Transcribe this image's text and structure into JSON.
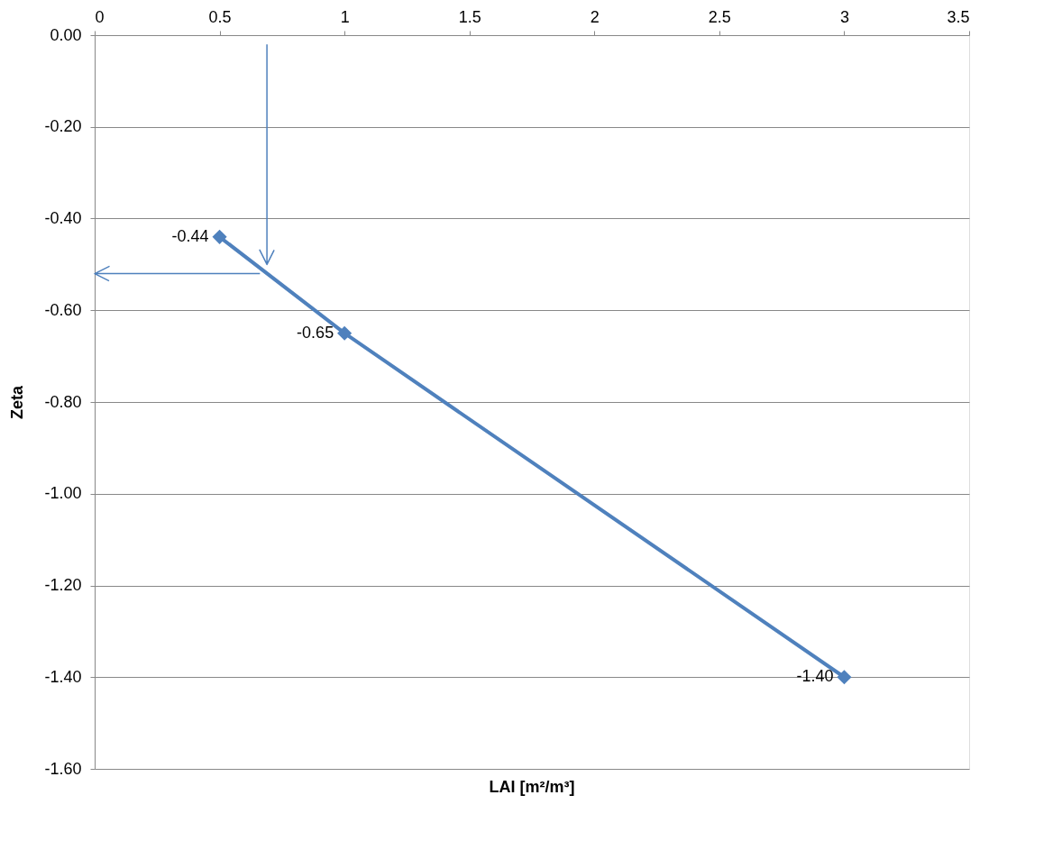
{
  "chart_data": {
    "type": "line",
    "xlabel": "LAI [m²/m³]",
    "ylabel": "Zeta",
    "xlim": [
      0,
      3.5
    ],
    "xticks": [
      0,
      0.5,
      1,
      1.5,
      2,
      2.5,
      3,
      3.5
    ],
    "ylim": [
      -1.6,
      0
    ],
    "yticks": [
      {
        "value": 0,
        "label": "0.00"
      },
      {
        "value": -0.2,
        "label": "-0.20"
      },
      {
        "value": -0.4,
        "label": "-0.40"
      },
      {
        "value": -0.6,
        "label": "-0.60"
      },
      {
        "value": -0.8,
        "label": "-0.80"
      },
      {
        "value": -1.0,
        "label": "-1.00"
      },
      {
        "value": -1.2,
        "label": "-1.20"
      },
      {
        "value": -1.4,
        "label": "-1.40"
      },
      {
        "value": -1.6,
        "label": "-1.60"
      }
    ],
    "grid": "y",
    "marker": "diamond",
    "line_style": "solid",
    "series": [
      {
        "color": "#4f81bd",
        "x": [
          0.5,
          1,
          3
        ],
        "values": [
          -0.44,
          -0.65,
          -1.4
        ],
        "value_labels": [
          "-0.44",
          "-0.65",
          "-1.40"
        ]
      }
    ]
  }
}
